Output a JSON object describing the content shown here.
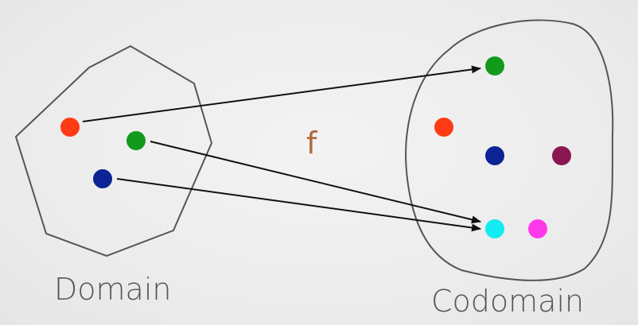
{
  "diagram": {
    "domain_label": "Domain",
    "codomain_label": "Codomain",
    "function_label": "f",
    "colors": {
      "background": "#eeeeee",
      "outline": "#555555",
      "arrow": "#111111",
      "label": "#555555",
      "function_label": "#b06a3a"
    },
    "domain_points": [
      {
        "id": "red",
        "color": "#ff3b16"
      },
      {
        "id": "green",
        "color": "#129a1c"
      },
      {
        "id": "navy",
        "color": "#0b2394"
      }
    ],
    "codomain_points": [
      {
        "id": "green",
        "color": "#129a1c"
      },
      {
        "id": "red",
        "color": "#ff3b16"
      },
      {
        "id": "navy",
        "color": "#0b2394"
      },
      {
        "id": "maroon",
        "color": "#8a1652"
      },
      {
        "id": "cyan",
        "color": "#13ecf2"
      },
      {
        "id": "magenta",
        "color": "#ff39ea"
      }
    ],
    "mappings": [
      {
        "from": "red",
        "to": "green"
      },
      {
        "from": "green",
        "to": "cyan"
      },
      {
        "from": "navy",
        "to": "cyan"
      }
    ]
  }
}
